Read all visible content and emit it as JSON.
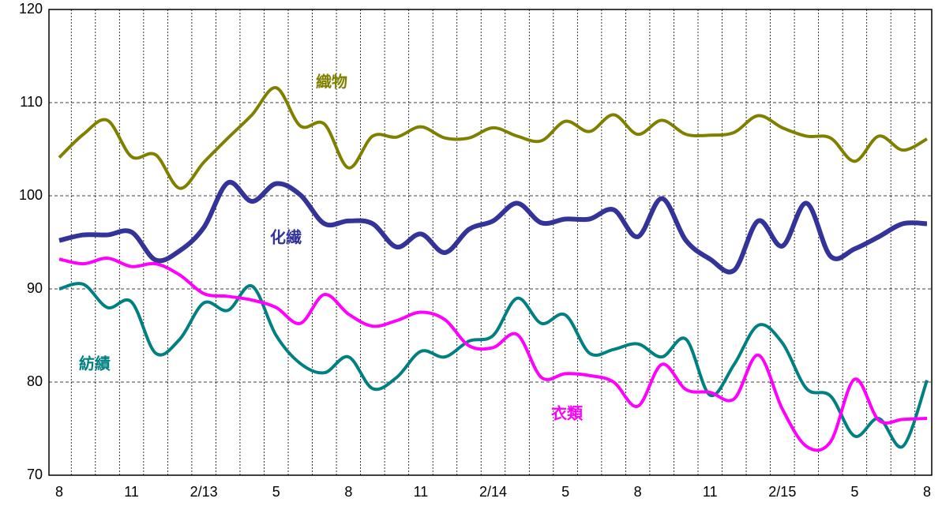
{
  "chart_data": {
    "type": "line",
    "categories": [
      "8",
      null,
      null,
      "11",
      null,
      null,
      "2/13",
      null,
      null,
      "5",
      null,
      null,
      "8",
      null,
      null,
      "11",
      null,
      null,
      "2/14",
      null,
      null,
      "5",
      null,
      null,
      "8",
      null,
      null,
      "11",
      null,
      null,
      "2/15",
      null,
      null,
      "5",
      null,
      null,
      "8"
    ],
    "series": [
      {
        "name": "織物",
        "color": "#808000",
        "values": [
          104.1,
          106.6,
          108.1,
          104.2,
          104.4,
          100.8,
          103.6,
          106.2,
          108.7,
          111.6,
          107.5,
          107.7,
          103.0,
          106.4,
          106.3,
          107.4,
          106.2,
          106.2,
          107.3,
          106.4,
          105.9,
          108.0,
          106.9,
          108.7,
          106.6,
          108.1,
          106.6,
          106.5,
          106.8,
          108.6,
          107.3,
          106.4,
          106.2,
          103.7,
          106.4,
          104.9,
          106.1
        ]
      },
      {
        "name": "化繊",
        "color": "#333399",
        "values": [
          95.2,
          95.8,
          95.8,
          96.1,
          93.1,
          94.1,
          96.6,
          101.4,
          99.4,
          101.3,
          100.1,
          97.0,
          97.3,
          97.0,
          94.5,
          95.9,
          93.9,
          96.4,
          97.3,
          99.2,
          97.1,
          97.5,
          97.5,
          98.5,
          95.6,
          99.7,
          95.2,
          93.2,
          92.0,
          97.3,
          94.6,
          99.2,
          93.5,
          94.3,
          95.6,
          97.0,
          97.0
        ]
      },
      {
        "name": "紡績",
        "color": "#008080",
        "values": [
          90.0,
          90.5,
          88.0,
          88.6,
          83.1,
          84.6,
          88.5,
          87.7,
          90.3,
          85.0,
          82.0,
          81.0,
          82.7,
          79.3,
          80.5,
          83.3,
          82.7,
          84.4,
          85.0,
          89.0,
          86.3,
          87.2,
          83.1,
          83.5,
          84.1,
          82.7,
          84.6,
          78.6,
          81.9,
          86.1,
          84.2,
          79.3,
          78.5,
          74.2,
          76.1,
          73.1,
          80.2
        ]
      },
      {
        "name": "衣類",
        "color": "#ff00ff",
        "values": [
          93.2,
          92.7,
          93.3,
          92.4,
          92.7,
          91.5,
          89.5,
          89.2,
          88.8,
          88.0,
          86.3,
          89.4,
          87.3,
          86.0,
          86.6,
          87.5,
          86.7,
          83.9,
          83.7,
          85.1,
          80.5,
          80.9,
          80.7,
          80.0,
          77.4,
          81.9,
          79.2,
          78.9,
          78.2,
          82.9,
          77.1,
          73.1,
          73.6,
          80.3,
          75.9,
          76.0,
          76.1
        ]
      }
    ],
    "ylim": [
      70,
      120
    ],
    "yticks": [
      70,
      80,
      90,
      100,
      110,
      120
    ],
    "grid": true
  }
}
